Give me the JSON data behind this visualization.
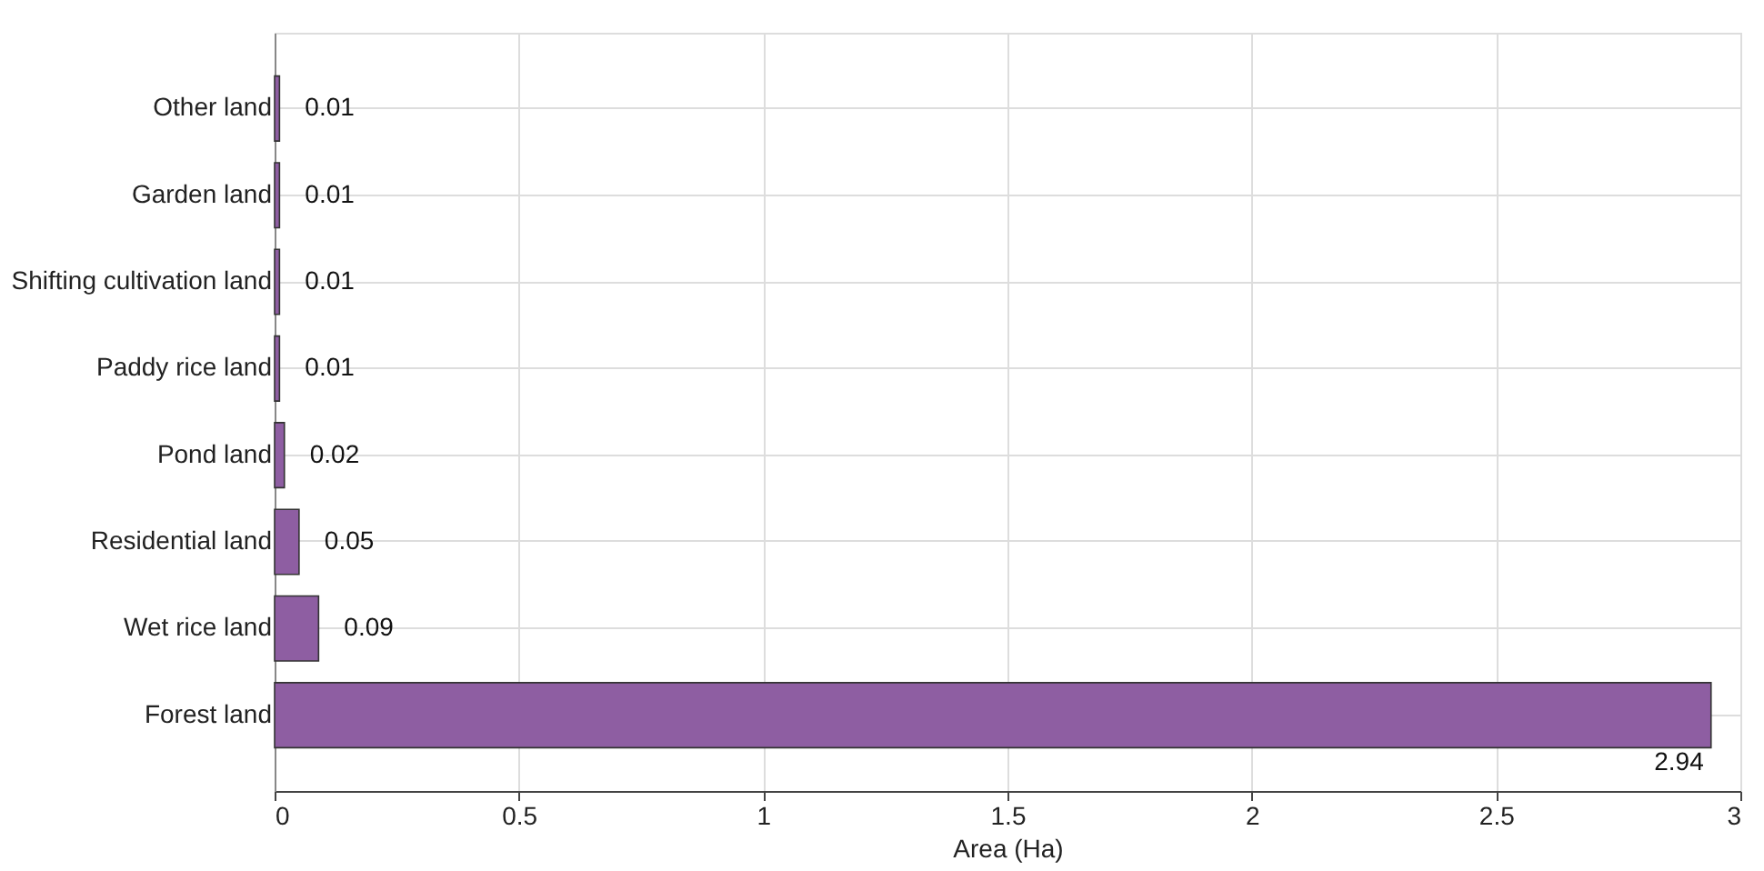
{
  "chart_data": {
    "type": "bar",
    "orientation": "horizontal",
    "xlabel": "Area (Ha)",
    "categories": [
      "Other land",
      "Garden land",
      "Shifting cultivation land",
      "Paddy rice land",
      "Pond land",
      "Residential land",
      "Wet rice land",
      "Forest land"
    ],
    "values": [
      0.01,
      0.01,
      0.01,
      0.01,
      0.02,
      0.05,
      0.09,
      2.94
    ],
    "color": "#8e5ea2",
    "xlim": [
      0,
      3
    ],
    "xticks": [
      0,
      0.5,
      1,
      1.5,
      2,
      2.5,
      3
    ],
    "data_labels": true,
    "grid": true
  }
}
